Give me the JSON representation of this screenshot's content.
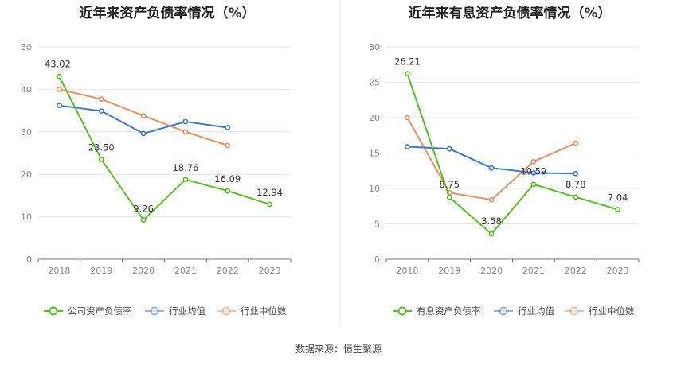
{
  "chart_data": [
    {
      "type": "line",
      "title": "近年来资产负债率情况（%）",
      "x": [
        "2018",
        "2019",
        "2020",
        "2021",
        "2022",
        "2023"
      ],
      "ylim": [
        0,
        50
      ],
      "yticks": [
        0,
        10,
        20,
        30,
        40,
        50
      ],
      "grid": true,
      "legend_position": "bottom",
      "series": [
        {
          "name": "公司资产负债率",
          "color": "#52c41a",
          "values": [
            43.02,
            23.5,
            9.26,
            18.76,
            16.09,
            12.94
          ],
          "labels": [
            "43.02",
            "23.50",
            "9.26",
            "18.76",
            "16.09",
            "12.94"
          ]
        },
        {
          "name": "行业均值",
          "color": "#3a78d8",
          "values": [
            36.2,
            34.9,
            29.6,
            32.4,
            31.0,
            null
          ]
        },
        {
          "name": "行业中位数",
          "color": "#f08c5a",
          "values": [
            40.0,
            37.7,
            33.8,
            30.0,
            26.8,
            null
          ]
        }
      ]
    },
    {
      "type": "line",
      "title": "近年来有息资产负债率情况（%）",
      "x": [
        "2018",
        "2019",
        "2020",
        "2021",
        "2022",
        "2023"
      ],
      "ylim": [
        0,
        30
      ],
      "yticks": [
        0,
        5,
        10,
        15,
        20,
        25,
        30
      ],
      "grid": true,
      "legend_position": "bottom",
      "series": [
        {
          "name": "有息资产负债率",
          "color": "#52c41a",
          "values": [
            26.21,
            8.75,
            3.58,
            10.59,
            8.78,
            7.04
          ],
          "labels": [
            "26.21",
            "8.75",
            "3.58",
            "10.59",
            "8.78",
            "7.04"
          ]
        },
        {
          "name": "行业均值",
          "color": "#3a78d8",
          "values": [
            15.9,
            15.6,
            12.9,
            12.2,
            12.1,
            null
          ]
        },
        {
          "name": "行业中位数",
          "color": "#f08c5a",
          "values": [
            20.0,
            9.4,
            8.4,
            13.8,
            16.4,
            null
          ]
        }
      ]
    }
  ],
  "source": "数据来源：恒生聚源"
}
